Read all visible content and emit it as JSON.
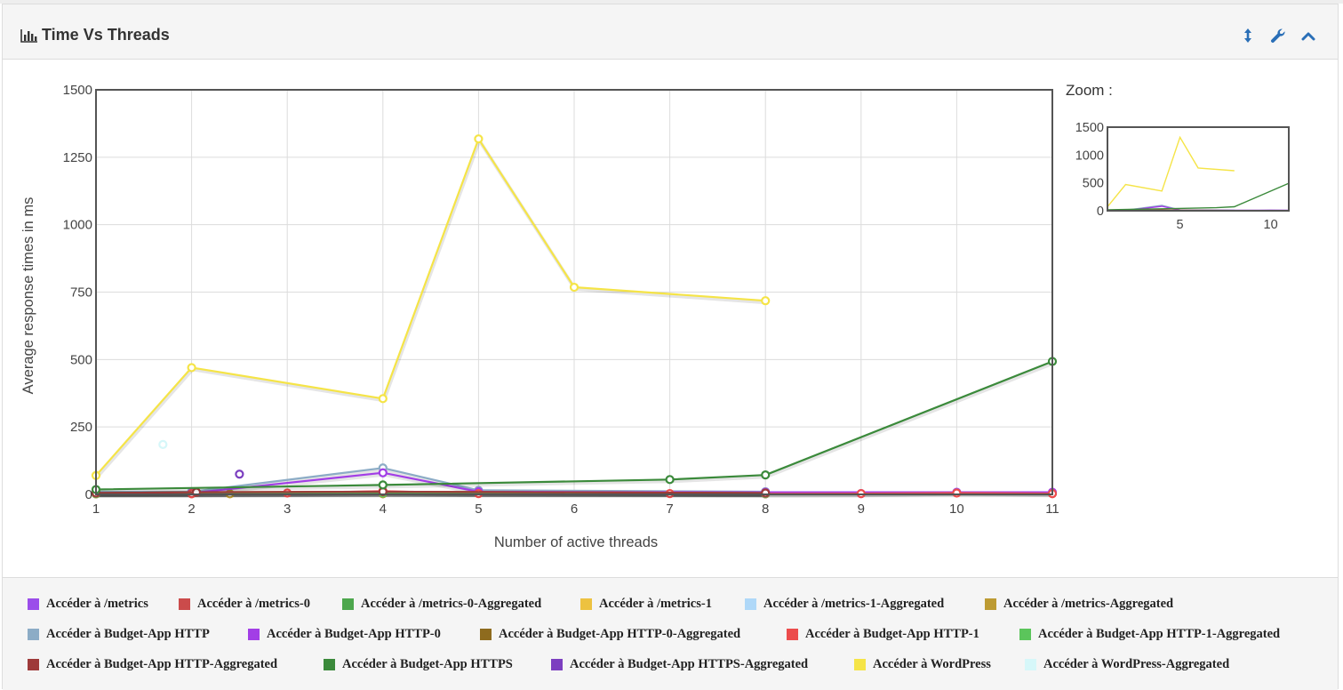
{
  "panel": {
    "title": "Time Vs Threads",
    "title_icon": "bar-chart-icon",
    "tools": [
      {
        "name": "resize-vertical-icon",
        "glyph": "↕"
      },
      {
        "name": "wrench-icon",
        "glyph": "wrench"
      },
      {
        "name": "chevron-up-icon",
        "glyph": "chevron-up"
      }
    ]
  },
  "zoom": {
    "label": "Zoom :"
  },
  "chart_data": {
    "type": "line",
    "title": "",
    "xlabel": "Number of active threads",
    "ylabel": "Average response times in ms",
    "xlim": [
      1,
      11
    ],
    "ylim": [
      0,
      1500
    ],
    "x_ticks": [
      1,
      2,
      3,
      4,
      5,
      6,
      7,
      8,
      9,
      10,
      11
    ],
    "y_ticks": [
      0,
      250,
      500,
      750,
      1000,
      1250,
      1500
    ],
    "grid": true,
    "legend_placement": "bottom",
    "zoom_x_ticks": [
      5,
      10
    ],
    "zoom_y_ticks": [
      0,
      500,
      1000,
      1500
    ],
    "series": [
      {
        "name": "Accéder à /metrics",
        "color": "#9b4dea",
        "points": [
          [
            1,
            3
          ],
          [
            2,
            3
          ],
          [
            4,
            5
          ],
          [
            8,
            3
          ],
          [
            9,
            3
          ],
          [
            10,
            8
          ],
          [
            11,
            5
          ]
        ]
      },
      {
        "name": "Accéder à /metrics-0",
        "color": "#cb4b4b",
        "points": [
          [
            1,
            2
          ],
          [
            2,
            2
          ],
          [
            4,
            3
          ],
          [
            8,
            2
          ],
          [
            11,
            3
          ]
        ]
      },
      {
        "name": "Accéder à /metrics-0-Aggregated",
        "color": "#4da74d",
        "points": [
          [
            1,
            2
          ],
          [
            4,
            3
          ],
          [
            8,
            2
          ]
        ]
      },
      {
        "name": "Accéder à /metrics-1",
        "color": "#edc240",
        "points": [
          [
            1,
            3
          ],
          [
            2,
            3
          ],
          [
            4,
            5
          ],
          [
            8,
            4
          ]
        ]
      },
      {
        "name": "Accéder à /metrics-1-Aggregated",
        "color": "#afd8f8",
        "points": [
          [
            1,
            3
          ],
          [
            4,
            4
          ],
          [
            8,
            3
          ]
        ]
      },
      {
        "name": "Accéder à /metrics-Aggregated",
        "color": "#bd9b33",
        "points": [
          [
            1,
            2
          ],
          [
            2.4,
            2
          ],
          [
            4,
            3
          ],
          [
            8,
            3
          ]
        ]
      },
      {
        "name": "Accéder à Budget-App HTTP",
        "color": "#8cacc6",
        "points": [
          [
            1,
            10
          ],
          [
            2,
            10
          ],
          [
            4,
            98
          ],
          [
            5,
            15
          ],
          [
            8,
            10
          ]
        ]
      },
      {
        "name": "Accéder à Budget-App HTTP-0",
        "color": "#a23ee6",
        "points": [
          [
            1,
            5
          ],
          [
            2,
            5
          ],
          [
            4,
            80
          ],
          [
            5,
            10
          ],
          [
            8,
            8
          ],
          [
            11,
            8
          ]
        ]
      },
      {
        "name": "Accéder à Budget-App HTTP-0-Aggregated",
        "color": "#8e6b1e",
        "points": [
          [
            1,
            5
          ],
          [
            2.05,
            8
          ],
          [
            4,
            10
          ],
          [
            8,
            5
          ]
        ]
      },
      {
        "name": "Accéder à Budget-App HTTP-1",
        "color": "#ec4c4c",
        "points": [
          [
            1,
            3
          ],
          [
            2,
            3
          ],
          [
            3,
            5
          ],
          [
            4,
            12
          ],
          [
            5,
            3
          ],
          [
            7,
            3
          ],
          [
            8,
            2
          ],
          [
            9,
            3
          ],
          [
            10,
            5
          ],
          [
            11,
            3
          ]
        ]
      },
      {
        "name": "Accéder à Budget-App HTTP-1-Aggregated",
        "color": "#5bc55b",
        "points": [
          [
            1,
            3
          ],
          [
            4,
            5
          ],
          [
            8,
            3
          ]
        ]
      },
      {
        "name": "Accéder à Budget-App HTTP-Aggregated",
        "color": "#9e3a3a",
        "points": [
          [
            1,
            5
          ],
          [
            2.05,
            8
          ],
          [
            4,
            10
          ],
          [
            8,
            5
          ]
        ]
      },
      {
        "name": "Accéder à Budget-App HTTPS",
        "color": "#3b8a3b",
        "points": [
          [
            1,
            18
          ],
          [
            4,
            35
          ],
          [
            7,
            55
          ],
          [
            8,
            72
          ],
          [
            11,
            493
          ]
        ]
      },
      {
        "name": "Accéder à Budget-App HTTPS-Aggregated",
        "color": "#7c3fc0",
        "points": [
          [
            2.5,
            75
          ]
        ]
      },
      {
        "name": "Accéder à WordPress",
        "color": "#f5e447",
        "points": [
          [
            1,
            70
          ],
          [
            2,
            470
          ],
          [
            4,
            355
          ],
          [
            5,
            1318
          ],
          [
            6,
            768
          ],
          [
            8,
            718
          ]
        ]
      },
      {
        "name": "Accéder à WordPress-Aggregated",
        "color": "#d6f7f9",
        "points": [
          [
            1.7,
            185
          ]
        ]
      }
    ]
  }
}
